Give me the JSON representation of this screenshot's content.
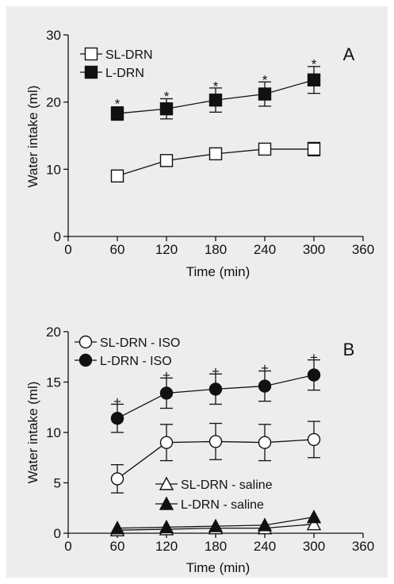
{
  "colors": {
    "background": "#ededed",
    "ink": "#111111"
  },
  "chart_data": [
    {
      "panel_label": "A",
      "type": "line",
      "xlabel": "Time (min)",
      "ylabel": "Water intake (ml)",
      "xlim": [
        0,
        360
      ],
      "ylim": [
        0,
        30
      ],
      "xticks": [
        0,
        60,
        120,
        180,
        240,
        300,
        360
      ],
      "yticks": [
        0,
        10,
        20,
        30
      ],
      "grid": false,
      "legend_position": "top-left",
      "series": [
        {
          "name": "SL-DRN",
          "marker": "square-open",
          "x": [
            60,
            120,
            180,
            240,
            300
          ],
          "y": [
            9.0,
            11.3,
            12.3,
            13.0,
            13.0
          ],
          "err": [
            0.5,
            0.7,
            0.5,
            0.8,
            1.0
          ]
        },
        {
          "name": "L-DRN",
          "marker": "square-filled",
          "x": [
            60,
            120,
            180,
            240,
            300
          ],
          "y": [
            18.3,
            19.0,
            20.3,
            21.2,
            23.3
          ],
          "err": [
            1.0,
            1.5,
            1.8,
            1.8,
            2.0
          ]
        }
      ],
      "annotations": [
        {
          "text": "*",
          "x": 60,
          "y": 19.8
        },
        {
          "text": "*",
          "x": 120,
          "y": 20.9
        },
        {
          "text": "*",
          "x": 180,
          "y": 22.4
        },
        {
          "text": "*",
          "x": 240,
          "y": 23.3
        },
        {
          "text": "*",
          "x": 300,
          "y": 25.7
        }
      ]
    },
    {
      "panel_label": "B",
      "type": "line",
      "xlabel": "Time (min)",
      "ylabel": "Water intake (ml)",
      "xlim": [
        0,
        360
      ],
      "ylim": [
        0,
        20
      ],
      "xticks": [
        0,
        60,
        120,
        180,
        240,
        300,
        360
      ],
      "yticks": [
        0,
        5,
        10,
        15,
        20
      ],
      "grid": false,
      "legend_position": "top-left",
      "series": [
        {
          "name": "SL-DRN - ISO",
          "marker": "circle-open",
          "x": [
            60,
            120,
            180,
            240,
            300
          ],
          "y": [
            5.4,
            9.0,
            9.1,
            9.0,
            9.3
          ],
          "err": [
            1.4,
            1.8,
            1.8,
            1.8,
            1.8
          ]
        },
        {
          "name": "L-DRN - ISO",
          "marker": "circle-filled",
          "x": [
            60,
            120,
            180,
            240,
            300
          ],
          "y": [
            11.4,
            13.9,
            14.3,
            14.6,
            15.7
          ],
          "err": [
            1.4,
            1.5,
            1.5,
            1.5,
            1.5
          ]
        },
        {
          "name": "SL-DRN - saline",
          "marker": "triangle-open",
          "x": [
            60,
            120,
            180,
            240,
            300
          ],
          "y": [
            0.3,
            0.4,
            0.5,
            0.5,
            0.9
          ],
          "err": [
            0,
            0,
            0,
            0,
            0
          ]
        },
        {
          "name": "L-DRN - saline",
          "marker": "triangle-filled",
          "x": [
            60,
            120,
            180,
            240,
            300
          ],
          "y": [
            0.5,
            0.6,
            0.7,
            0.8,
            1.6
          ],
          "err": [
            0,
            0,
            0,
            0,
            0
          ]
        }
      ],
      "annotations": [
        {
          "text": "+",
          "x": 60,
          "y": 13.1
        },
        {
          "text": "+",
          "x": 120,
          "y": 15.7
        },
        {
          "text": "+",
          "x": 180,
          "y": 16.1
        },
        {
          "text": "+",
          "x": 240,
          "y": 16.4
        },
        {
          "text": "+",
          "x": 300,
          "y": 17.5
        }
      ]
    }
  ]
}
